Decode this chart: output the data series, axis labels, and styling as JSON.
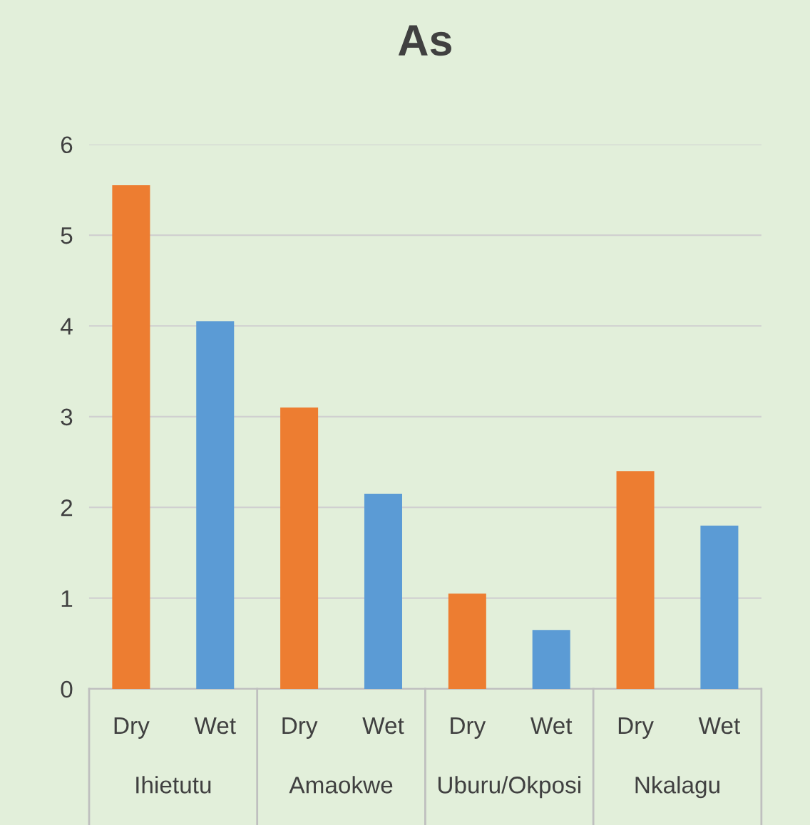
{
  "chart_data": {
    "type": "bar",
    "title": "As",
    "categories": [
      "Dry",
      "Wet",
      "Dry",
      "Wet",
      "Dry",
      "Wet",
      "Dry",
      "Wet"
    ],
    "values": [
      5.55,
      4.05,
      3.1,
      2.15,
      1.05,
      0.65,
      2.4,
      1.8
    ],
    "colors": [
      "#ed7d31",
      "#5b9bd5",
      "#ed7d31",
      "#5b9bd5",
      "#ed7d31",
      "#5b9bd5",
      "#ed7d31",
      "#5b9bd5"
    ],
    "annotations": [
      "Ihietutu",
      "Amaokwe",
      "Uburu/Okposi",
      "Nkalagu"
    ],
    "ylim": [
      0,
      6
    ],
    "yticks": [
      0,
      1,
      2,
      3,
      4,
      5,
      6
    ],
    "grid": "y",
    "legend": false
  }
}
